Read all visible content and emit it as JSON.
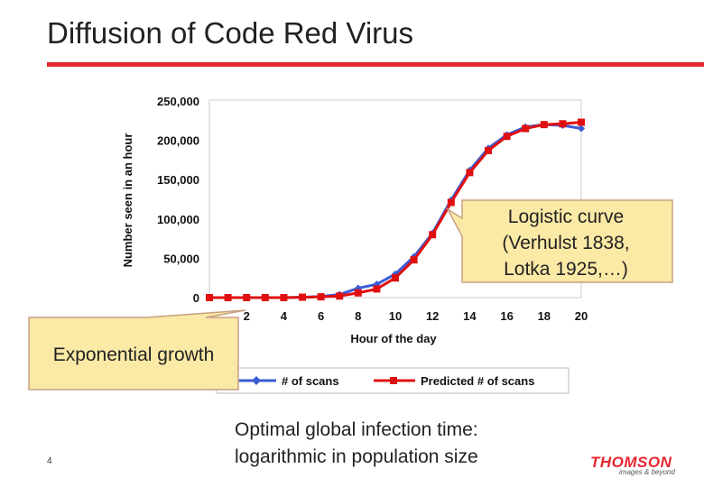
{
  "slide": {
    "title": "Diffusion of Code Red Virus",
    "page_number": "4",
    "note_line1": "Optimal global infection time:",
    "note_line2": "logarithmic in population size",
    "logo_brand": "THOMSON",
    "logo_tagline": "images & beyond",
    "accent_color": "#e8262f"
  },
  "callouts": {
    "logistic": [
      "Logistic curve",
      "(Verhulst 1838,",
      "Lotka 1925,…)"
    ],
    "exponential": "Exponential growth",
    "fill_color": "#fbe9a6",
    "border_color": "#c8a080"
  },
  "chart_data": {
    "type": "line",
    "title": "",
    "xlabel": "Hour of the day",
    "ylabel": "Number seen in an hour",
    "x": [
      0,
      1,
      2,
      3,
      4,
      5,
      6,
      7,
      8,
      9,
      10,
      11,
      12,
      13,
      14,
      15,
      16,
      17,
      18,
      19,
      20
    ],
    "x_ticks": [
      2,
      4,
      6,
      8,
      10,
      12,
      14,
      16,
      18,
      20
    ],
    "y_ticks": [
      0,
      50000,
      100000,
      150000,
      200000,
      250000
    ],
    "y_tick_labels": [
      "0",
      "50,000",
      "100,000",
      "150,000",
      "200,000",
      "250,000"
    ],
    "xlim": [
      0,
      20
    ],
    "ylim": [
      0,
      250000
    ],
    "legend_position": "bottom",
    "series": [
      {
        "name": "# of scans",
        "color": "#3b5bd6",
        "marker": "diamond",
        "values": [
          0,
          0,
          0,
          0,
          0,
          500,
          1500,
          4000,
          12000,
          17000,
          30000,
          52000,
          82000,
          124000,
          162000,
          190000,
          207000,
          217000,
          220000,
          219000,
          215000
        ]
      },
      {
        "name": "Predicted # of scans",
        "color": "#e01010",
        "marker": "square",
        "values": [
          0,
          0,
          0,
          0,
          0,
          500,
          1000,
          2000,
          6000,
          11000,
          25000,
          48000,
          80000,
          121000,
          159000,
          187000,
          205000,
          215000,
          220000,
          221000,
          223000
        ]
      }
    ]
  }
}
